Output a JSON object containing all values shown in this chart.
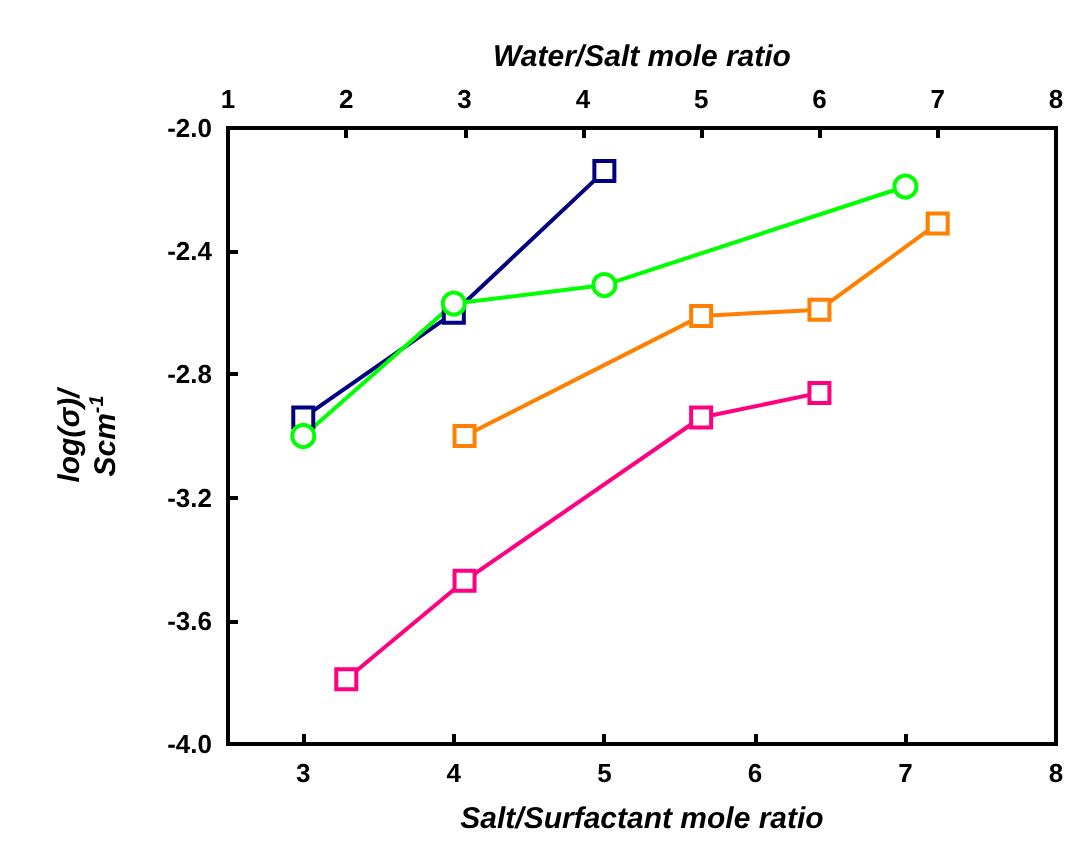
{
  "chart_data": {
    "type": "line",
    "xlabel": "Salt/Surfactant mole ratio",
    "x2label": "Water/Salt mole ratio",
    "ylabel": "log(σ)/\nScm$^{-1}$",
    "xlim": [
      2.5,
      8
    ],
    "xticks": [
      3,
      4,
      5,
      6,
      7,
      8
    ],
    "x2lim": [
      1,
      8
    ],
    "x2ticks": [
      1,
      2,
      3,
      4,
      5,
      6,
      7,
      8
    ],
    "ylim": [
      -4.0,
      -2.0
    ],
    "yticks": [
      {
        "value": -4.0,
        "label": "-4.0"
      },
      {
        "value": -3.6,
        "label": "-3.6"
      },
      {
        "value": -3.2,
        "label": "-3.2"
      },
      {
        "value": -2.8,
        "label": "-2.8"
      },
      {
        "value": -2.4,
        "label": "-2.4"
      },
      {
        "value": -2.0,
        "label": "-2.0"
      }
    ],
    "grid": false,
    "line_style": "solid",
    "series": [
      {
        "color": "#000080",
        "marker": "square",
        "x": [
          3,
          4,
          5
        ],
        "values": [
          -2.94,
          -2.6,
          -2.14
        ]
      },
      {
        "color": "#00ff00",
        "marker": "circle",
        "x": [
          3,
          4,
          5,
          7
        ],
        "values": [
          -3.0,
          -2.57,
          -2.51,
          -2.19
        ]
      },
      {
        "color": "#ff8000",
        "marker": "square",
        "axis": "x2",
        "x": [
          3,
          5,
          6,
          7
        ],
        "values": [
          -3.0,
          -2.61,
          -2.59,
          -2.31
        ]
      },
      {
        "color": "#ff0080",
        "marker": "square",
        "axis": "x2",
        "x": [
          2,
          3,
          5,
          6
        ],
        "values": [
          -3.79,
          -3.47,
          -2.94,
          -2.86
        ]
      }
    ]
  }
}
